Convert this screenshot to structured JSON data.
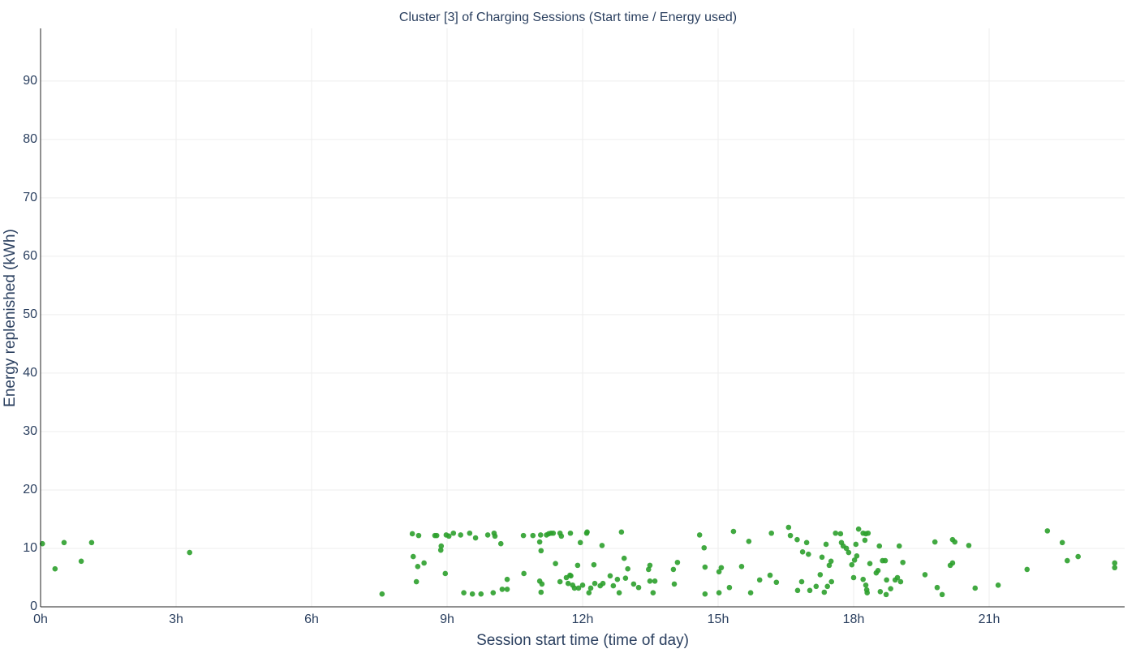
{
  "chart_data": {
    "type": "scatter",
    "title": "Cluster [3] of Charging Sessions (Start time / Energy used)",
    "x_label": "Session start time (time of day)",
    "y_label": "Energy replenished (kWh)",
    "xlim": [
      0,
      24
    ],
    "ylim": [
      0,
      99
    ],
    "xticks": [
      {
        "value": 0,
        "label": "0h"
      },
      {
        "value": 3,
        "label": "3h"
      },
      {
        "value": 6,
        "label": "6h"
      },
      {
        "value": 9,
        "label": "9h"
      },
      {
        "value": 12,
        "label": "12h"
      },
      {
        "value": 15,
        "label": "15h"
      },
      {
        "value": 18,
        "label": "18h"
      },
      {
        "value": 21,
        "label": "21h"
      }
    ],
    "yticks": [
      0,
      10,
      20,
      30,
      40,
      50,
      60,
      70,
      80,
      90
    ],
    "grid": true,
    "color": "#2ca02c",
    "x": [
      0.04,
      0.32,
      0.52,
      0.9,
      1.13,
      3.3,
      7.56,
      8.23,
      8.37,
      8.25,
      8.32,
      8.35,
      8.49,
      8.73,
      8.77,
      8.86,
      8.87,
      8.96,
      8.98,
      9.04,
      9.14,
      9.3,
      9.37,
      9.5,
      9.56,
      9.63,
      9.75,
      9.9,
      10.02,
      10.04,
      10.06,
      10.19,
      10.22,
      10.33,
      10.33,
      10.69,
      10.7,
      10.9,
      11.05,
      11.05,
      11.07,
      11.08,
      11.08,
      11.1,
      11.2,
      11.25,
      11.3,
      11.35,
      11.4,
      11.5,
      11.5,
      11.53,
      11.64,
      11.68,
      11.72,
      11.73,
      11.74,
      11.78,
      11.82,
      11.89,
      11.91,
      11.95,
      12,
      12.09,
      12.1,
      12.14,
      12.18,
      12.25,
      12.27,
      12.39,
      12.43,
      12.45,
      12.61,
      12.68,
      12.77,
      12.81,
      12.86,
      12.92,
      12.95,
      13,
      13.13,
      13.24,
      13.46,
      13.49,
      13.49,
      13.56,
      13.6,
      14.01,
      14.03,
      14.1,
      14.59,
      14.69,
      14.71,
      14.71,
      15.02,
      15.02,
      15.07,
      15.25,
      15.34,
      15.52,
      15.68,
      15.72,
      15.92,
      16.15,
      16.18,
      16.29,
      16.56,
      16.6,
      16.75,
      16.76,
      16.85,
      16.87,
      16.96,
      17,
      17.03,
      17.17,
      17.26,
      17.3,
      17.35,
      17.39,
      17.42,
      17.46,
      17.5,
      17.51,
      17.6,
      17.71,
      17.73,
      17.77,
      17.84,
      17.89,
      17.96,
      18,
      18.02,
      18.05,
      18.07,
      18.11,
      18.21,
      18.21,
      18.25,
      18.27,
      18.27,
      18.29,
      18.3,
      18.32,
      18.36,
      18.5,
      18.54,
      18.57,
      18.59,
      18.64,
      18.7,
      18.72,
      18.73,
      18.82,
      18.92,
      18.97,
      19.01,
      19.04,
      19.09,
      19.58,
      19.8,
      19.85,
      19.96,
      20.14,
      20.19,
      20.19,
      20.24,
      20.55,
      20.69,
      21.2,
      21.84,
      22.29,
      22.62,
      22.73,
      22.97,
      23.78,
      23.78
    ],
    "y": [
      10.8,
      6.5,
      11,
      7.8,
      11,
      9.3,
      2.2,
      12.5,
      12.2,
      8.6,
      4.3,
      6.9,
      7.5,
      12.2,
      12.2,
      9.7,
      10.4,
      5.7,
      12.3,
      12.1,
      12.6,
      12.3,
      2.4,
      12.6,
      2.2,
      11.8,
      2.2,
      12.3,
      2.4,
      12.6,
      12.1,
      10.8,
      3,
      3,
      4.7,
      12.2,
      5.7,
      12.2,
      11.1,
      4.4,
      12.3,
      9.6,
      2.5,
      3.9,
      12.3,
      12.5,
      12.6,
      12.6,
      7.4,
      12.6,
      4.3,
      12.1,
      5,
      4,
      5.4,
      12.6,
      5.3,
      3.7,
      3.2,
      7.1,
      3.2,
      11,
      3.7,
      12.6,
      12.8,
      2.4,
      3.2,
      7.2,
      4,
      3.6,
      10.5,
      4,
      5.3,
      3.6,
      4.7,
      2.4,
      12.8,
      8.3,
      4.9,
      6.5,
      3.9,
      3.3,
      6.4,
      7.1,
      4.4,
      2.4,
      4.4,
      6.4,
      3.9,
      7.6,
      12.3,
      10.1,
      2.2,
      6.8,
      2.4,
      6,
      6.7,
      3.3,
      12.9,
      6.9,
      11.2,
      2.4,
      4.6,
      5.4,
      12.6,
      4.2,
      13.6,
      12.2,
      11.5,
      2.8,
      4.3,
      9.4,
      11,
      9,
      2.8,
      3.5,
      5.5,
      8.5,
      2.5,
      10.7,
      3.5,
      7.1,
      7.8,
      4.3,
      12.6,
      12.5,
      11,
      10.4,
      10,
      9.3,
      7.2,
      5,
      8,
      10.7,
      8.7,
      13.3,
      4.7,
      12.6,
      11.4,
      3.7,
      12.5,
      2.9,
      2.4,
      12.6,
      7.4,
      5.8,
      6.2,
      10.4,
      2.6,
      7.9,
      7.9,
      2.1,
      4.6,
      3.1,
      4.6,
      5,
      10.4,
      4.3,
      7.6,
      5.5,
      11.1,
      3.3,
      2.1,
      7.1,
      7.5,
      11.5,
      11.1,
      10.5,
      3.2,
      3.7,
      6.4,
      13,
      11,
      7.9,
      8.6,
      7.5,
      6.7
    ]
  }
}
